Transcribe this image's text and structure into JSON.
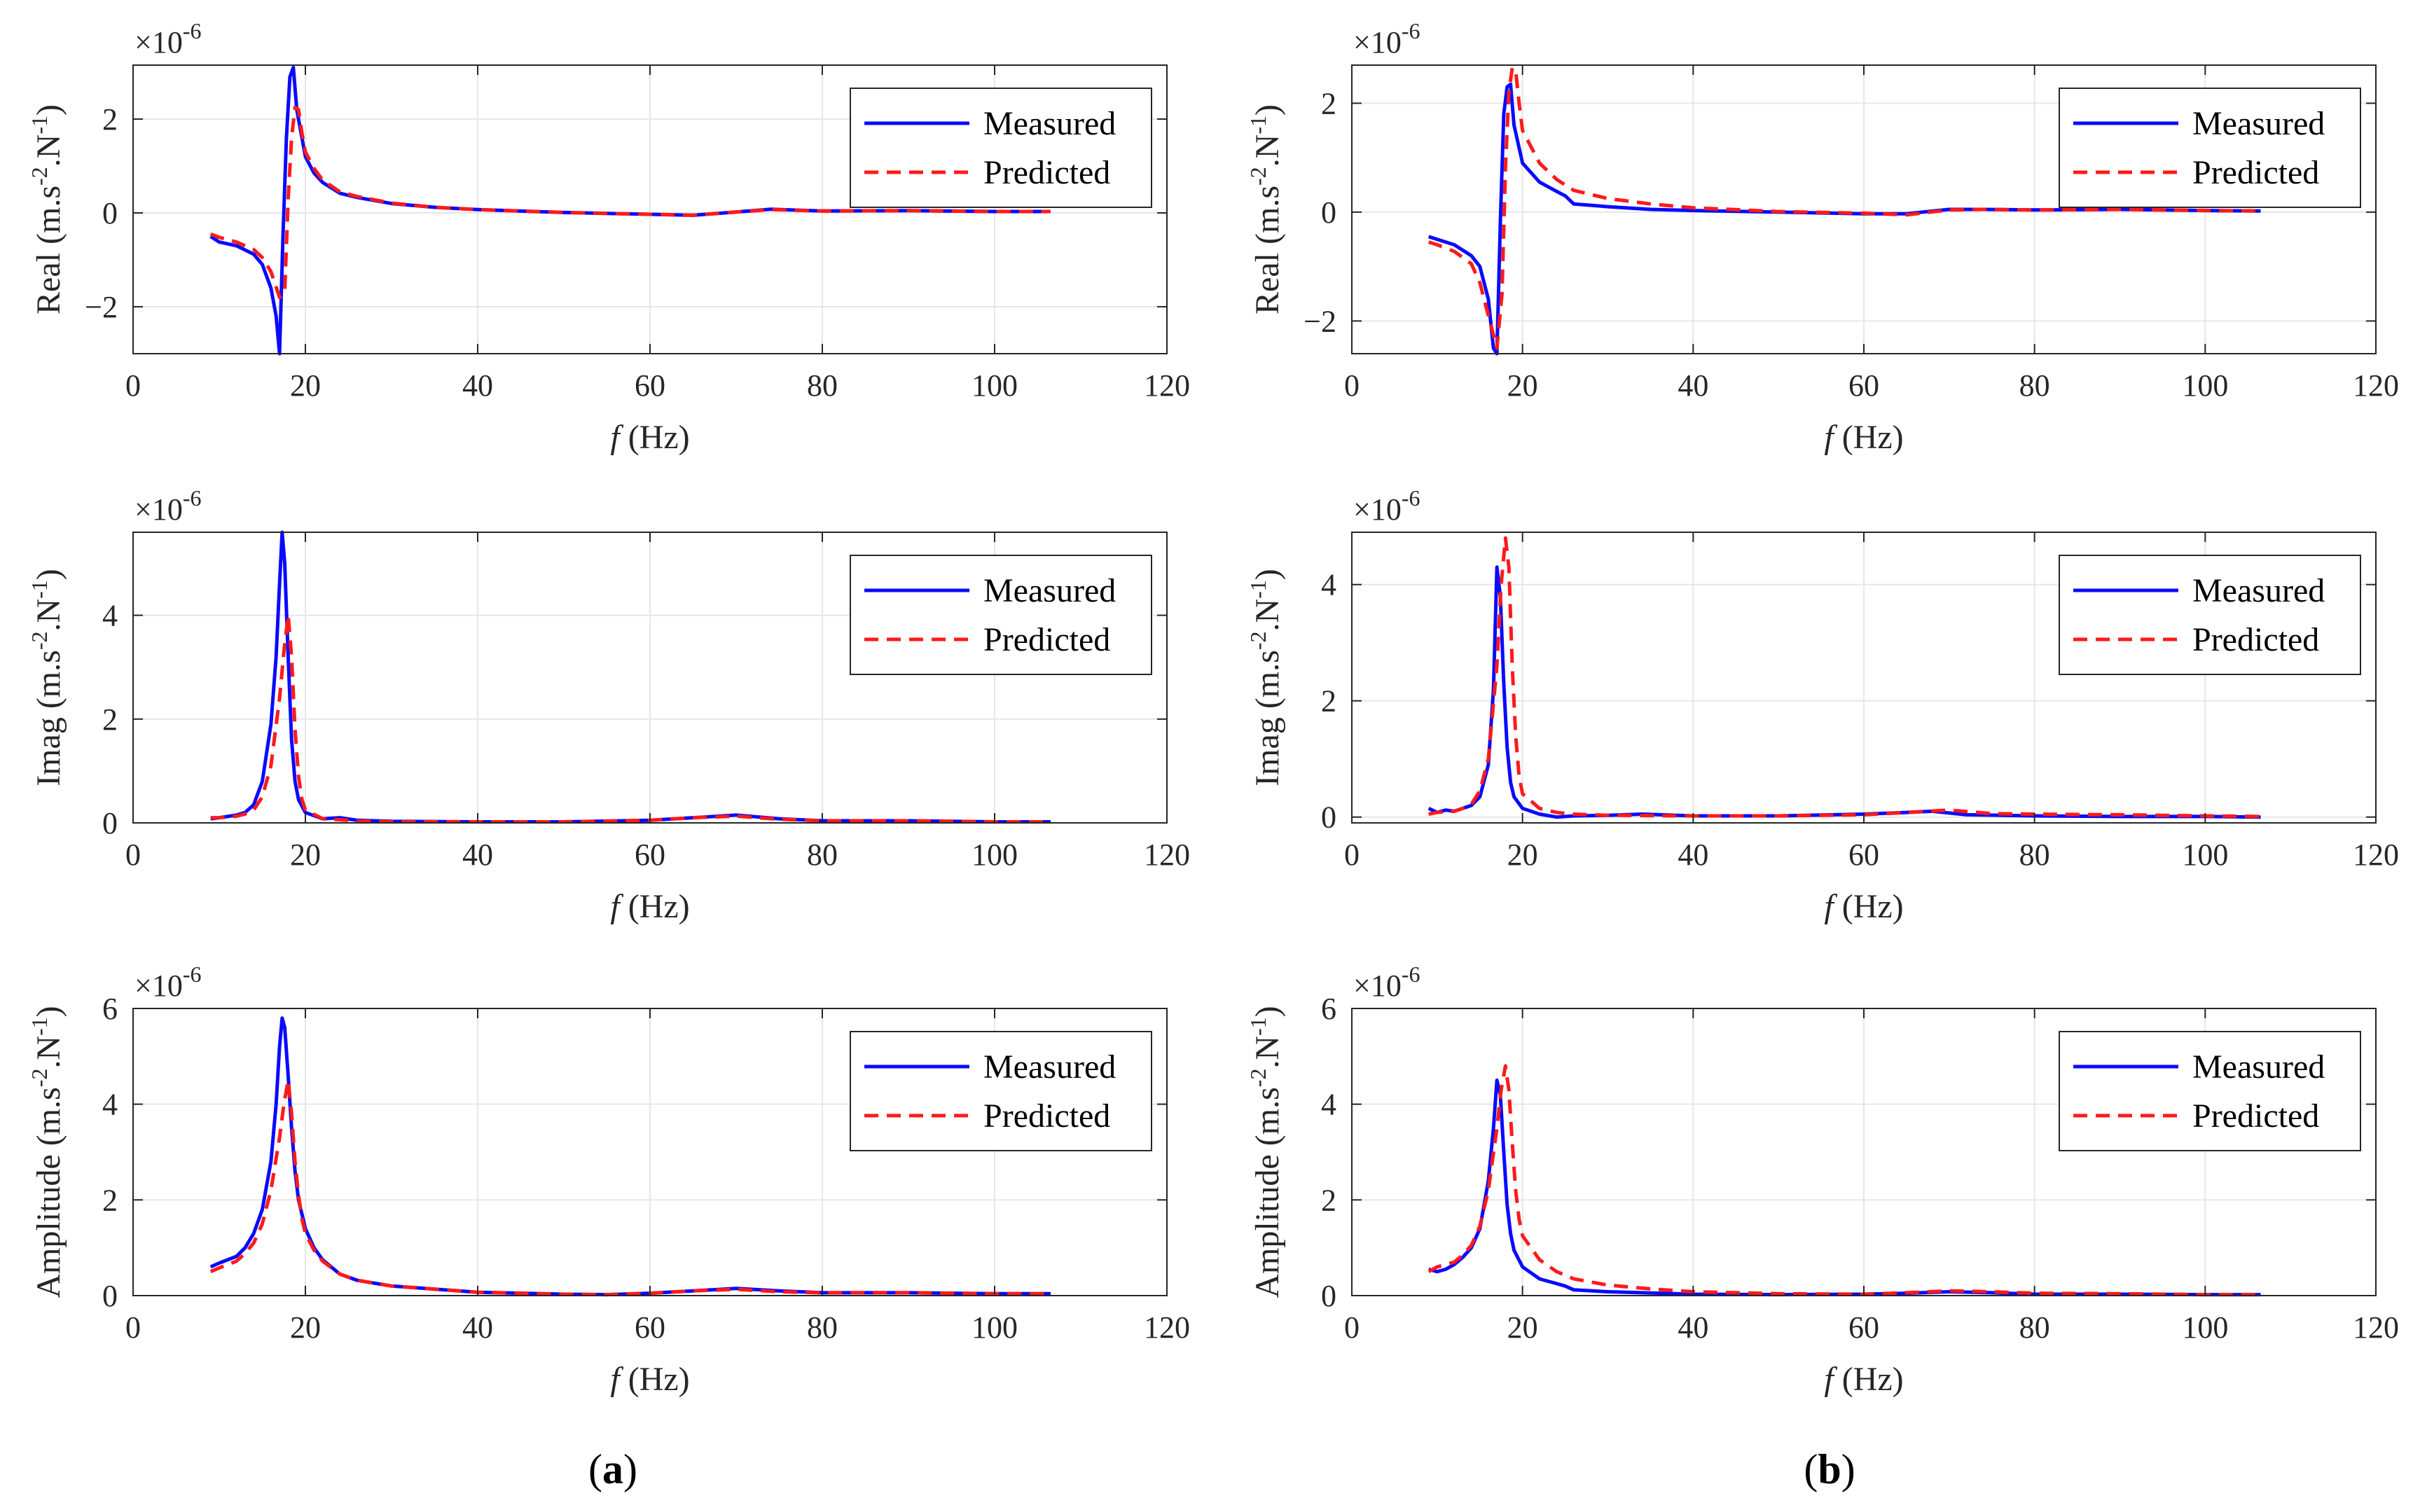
{
  "figure": {
    "captions": [
      {
        "prefix": "(",
        "letter": "a",
        "suffix": ")"
      },
      {
        "prefix": "(",
        "letter": "b",
        "suffix": ")"
      }
    ]
  },
  "colors": {
    "measured": "#0a0aff",
    "predicted": "#ff1a1a",
    "grid": "#e6e6e6",
    "axis": "#262626"
  },
  "chart_data": [
    {
      "type": "line",
      "column": "a",
      "row": 0,
      "exponent_label": "×10",
      "exponent_power": "-6",
      "ylabel": {
        "name": "Real",
        "unit_pre": "(m.s",
        "sup1": "-2",
        "unit_mid": ".N",
        "sup2": "-1",
        "unit_post": ")"
      },
      "xlabel": {
        "var": "f",
        "unit": "(Hz)"
      },
      "xlim": [
        0,
        120
      ],
      "ylim": [
        -3,
        3.15
      ],
      "xticks": [
        0,
        20,
        40,
        60,
        80,
        100,
        120
      ],
      "yticks": [
        -2,
        0,
        2
      ],
      "legend": [
        "Measured",
        "Predicted"
      ],
      "series": [
        {
          "name": "Measured",
          "style": "solid",
          "x": [
            9,
            10,
            12,
            14,
            15,
            16,
            16.6,
            17,
            17.4,
            17.8,
            18.2,
            18.6,
            19,
            20,
            21,
            22,
            24,
            26,
            30,
            35,
            40,
            50,
            60,
            65,
            70,
            74,
            80,
            90,
            100,
            106.5
          ],
          "y": [
            -0.5,
            -0.62,
            -0.7,
            -0.88,
            -1.1,
            -1.6,
            -2.2,
            -3.0,
            -0.5,
            1.6,
            2.9,
            3.1,
            2.2,
            1.2,
            0.85,
            0.65,
            0.42,
            0.33,
            0.2,
            0.12,
            0.07,
            0.01,
            -0.03,
            -0.05,
            0.02,
            0.08,
            0.04,
            0.05,
            0.03,
            0.03
          ]
        },
        {
          "name": "Predicted",
          "style": "dashed",
          "x": [
            9,
            10,
            12,
            14,
            15,
            16,
            17,
            17.6,
            18,
            18.4,
            18.8,
            19.2,
            19.6,
            20,
            21,
            22,
            24,
            26,
            30,
            35,
            40,
            50,
            60,
            65,
            70,
            74,
            80,
            90,
            100,
            106.5
          ],
          "y": [
            -0.45,
            -0.52,
            -0.62,
            -0.78,
            -0.95,
            -1.25,
            -1.8,
            -1.7,
            0.3,
            1.6,
            2.25,
            2.2,
            1.7,
            1.3,
            0.95,
            0.7,
            0.45,
            0.35,
            0.21,
            0.12,
            0.07,
            0.01,
            -0.03,
            -0.05,
            0.02,
            0.07,
            0.04,
            0.05,
            0.03,
            0.03
          ]
        }
      ]
    },
    {
      "type": "line",
      "column": "b",
      "row": 0,
      "exponent_label": "×10",
      "exponent_power": "-6",
      "ylabel": {
        "name": "Real",
        "unit_pre": "(m.s",
        "sup1": "-2",
        "unit_mid": ".N",
        "sup2": "-1",
        "unit_post": ")"
      },
      "xlabel": {
        "var": "f",
        "unit": "(Hz)"
      },
      "xlim": [
        0,
        120
      ],
      "ylim": [
        -2.6,
        2.7
      ],
      "xticks": [
        0,
        20,
        40,
        60,
        80,
        100,
        120
      ],
      "yticks": [
        -2,
        0,
        2
      ],
      "legend": [
        "Measured",
        "Predicted"
      ],
      "series": [
        {
          "name": "Measured",
          "style": "solid",
          "x": [
            9,
            10,
            12,
            14,
            15,
            16,
            16.6,
            17,
            17.4,
            17.8,
            18.2,
            18.6,
            19,
            20,
            22,
            24,
            25,
            26,
            30,
            35,
            40,
            50,
            60,
            65,
            70,
            74,
            80,
            90,
            100,
            106.5
          ],
          "y": [
            -0.45,
            -0.5,
            -0.6,
            -0.8,
            -1.0,
            -1.6,
            -2.5,
            -2.6,
            -0.2,
            1.8,
            2.3,
            2.35,
            1.6,
            0.9,
            0.55,
            0.38,
            0.3,
            0.15,
            0.1,
            0.05,
            0.03,
            0.0,
            -0.03,
            -0.03,
            0.05,
            0.05,
            0.04,
            0.05,
            0.03,
            0.02
          ]
        },
        {
          "name": "Predicted",
          "style": "dashed",
          "x": [
            9,
            10,
            12,
            14,
            15,
            16,
            17,
            17.6,
            18,
            18.4,
            18.8,
            19.2,
            19.6,
            20,
            22,
            24,
            26,
            30,
            35,
            40,
            50,
            60,
            65,
            70,
            74,
            80,
            90,
            100,
            106.5
          ],
          "y": [
            -0.55,
            -0.6,
            -0.72,
            -0.95,
            -1.3,
            -1.9,
            -2.5,
            -1.5,
            0.8,
            2.2,
            2.65,
            2.6,
            2.0,
            1.5,
            0.9,
            0.6,
            0.4,
            0.25,
            0.15,
            0.08,
            0.01,
            -0.02,
            -0.05,
            0.04,
            0.05,
            0.04,
            0.05,
            0.03,
            0.02
          ]
        }
      ]
    },
    {
      "type": "line",
      "column": "a",
      "row": 1,
      "exponent_label": "×10",
      "exponent_power": "-6",
      "ylabel": {
        "name": "Imag",
        "unit_pre": "(m.s",
        "sup1": "-2",
        "unit_mid": ".N",
        "sup2": "-1",
        "unit_post": ")"
      },
      "xlabel": {
        "var": "f",
        "unit": "(Hz)"
      },
      "xlim": [
        0,
        120
      ],
      "ylim": [
        0,
        5.6
      ],
      "xticks": [
        0,
        20,
        40,
        60,
        80,
        100,
        120
      ],
      "yticks": [
        0,
        2,
        4
      ],
      "legend": [
        "Measured",
        "Predicted"
      ],
      "series": [
        {
          "name": "Measured",
          "style": "solid",
          "x": [
            9,
            10,
            12,
            13,
            14,
            15,
            16,
            16.6,
            17,
            17.3,
            17.6,
            18,
            18.4,
            18.8,
            19.2,
            20,
            22,
            24,
            26,
            30,
            40,
            50,
            60,
            65,
            70,
            75,
            80,
            90,
            100,
            106.5
          ],
          "y": [
            0.08,
            0.1,
            0.15,
            0.2,
            0.35,
            0.8,
            1.9,
            3.2,
            4.6,
            5.6,
            5.0,
            3.2,
            1.6,
            0.8,
            0.45,
            0.2,
            0.08,
            0.1,
            0.05,
            0.03,
            0.02,
            0.02,
            0.05,
            0.1,
            0.15,
            0.08,
            0.04,
            0.04,
            0.02,
            0.02
          ]
        },
        {
          "name": "Predicted",
          "style": "dashed",
          "x": [
            9,
            10,
            12,
            13,
            14,
            15,
            16,
            17,
            17.5,
            18,
            18.4,
            18.8,
            19.2,
            19.6,
            20,
            22,
            24,
            26,
            30,
            40,
            50,
            60,
            65,
            70,
            75,
            80,
            90,
            100,
            106.5
          ],
          "y": [
            0.1,
            0.1,
            0.13,
            0.17,
            0.25,
            0.5,
            1.1,
            2.4,
            3.3,
            4.0,
            3.2,
            1.8,
            0.9,
            0.45,
            0.25,
            0.08,
            0.06,
            0.04,
            0.02,
            0.02,
            0.02,
            0.05,
            0.1,
            0.13,
            0.07,
            0.04,
            0.04,
            0.02,
            0.02
          ]
        }
      ]
    },
    {
      "type": "line",
      "column": "b",
      "row": 1,
      "exponent_label": "×10",
      "exponent_power": "-6",
      "ylabel": {
        "name": "Imag",
        "unit_pre": "(m.s",
        "sup1": "-2",
        "unit_mid": ".N",
        "sup2": "-1",
        "unit_post": ")"
      },
      "xlabel": {
        "var": "f",
        "unit": "(Hz)"
      },
      "xlim": [
        0,
        120
      ],
      "ylim": [
        -0.1,
        4.9
      ],
      "xticks": [
        0,
        20,
        40,
        60,
        80,
        100,
        120
      ],
      "yticks": [
        0,
        2,
        4
      ],
      "legend": [
        "Measured",
        "Predicted"
      ],
      "series": [
        {
          "name": "Measured",
          "style": "solid",
          "x": [
            9,
            10,
            11,
            12,
            13,
            14,
            15,
            16,
            16.6,
            17,
            17.4,
            17.8,
            18.2,
            18.6,
            19,
            20,
            22,
            24,
            26,
            30,
            34,
            40,
            50,
            60,
            65,
            68,
            72,
            80,
            90,
            100,
            106.5
          ],
          "y": [
            0.15,
            0.08,
            0.12,
            0.1,
            0.15,
            0.2,
            0.35,
            0.9,
            2.2,
            4.3,
            3.8,
            2.3,
            1.2,
            0.6,
            0.35,
            0.15,
            0.05,
            0.0,
            0.02,
            0.03,
            0.05,
            0.02,
            0.02,
            0.05,
            0.08,
            0.1,
            0.04,
            0.02,
            0.01,
            0.01,
            0.0
          ]
        },
        {
          "name": "Predicted",
          "style": "dashed",
          "x": [
            9,
            10,
            12,
            13,
            14,
            15,
            16,
            17,
            17.5,
            18,
            18.4,
            18.8,
            19.2,
            19.6,
            20,
            22,
            24,
            26,
            30,
            40,
            50,
            60,
            65,
            70,
            75,
            80,
            90,
            100,
            106.5
          ],
          "y": [
            0.05,
            0.08,
            0.1,
            0.15,
            0.22,
            0.45,
            1.0,
            2.6,
            4.0,
            4.8,
            4.3,
            2.6,
            1.4,
            0.7,
            0.4,
            0.15,
            0.08,
            0.05,
            0.03,
            0.02,
            0.02,
            0.04,
            0.08,
            0.12,
            0.06,
            0.05,
            0.04,
            0.02,
            0.01
          ]
        }
      ]
    },
    {
      "type": "line",
      "column": "a",
      "row": 2,
      "exponent_label": "×10",
      "exponent_power": "-6",
      "ylabel": {
        "name": "Amplitude",
        "unit_pre": "(m.s",
        "sup1": "-2",
        "unit_mid": ".N",
        "sup2": "-1",
        "unit_post": ")"
      },
      "xlabel": {
        "var": "f",
        "unit": "(Hz)"
      },
      "xlim": [
        0,
        120
      ],
      "ylim": [
        0,
        6
      ],
      "xticks": [
        0,
        20,
        40,
        60,
        80,
        100,
        120
      ],
      "yticks": [
        0,
        2,
        4,
        6
      ],
      "legend": [
        "Measured",
        "Predicted"
      ],
      "series": [
        {
          "name": "Measured",
          "style": "solid",
          "x": [
            9,
            10,
            12,
            13,
            14,
            15,
            16,
            16.6,
            17,
            17.3,
            17.6,
            18,
            18.4,
            18.8,
            19.2,
            20,
            21,
            22,
            24,
            26,
            30,
            40,
            50,
            55,
            60,
            65,
            70,
            75,
            80,
            90,
            100,
            106.5
          ],
          "y": [
            0.6,
            0.68,
            0.82,
            1.0,
            1.3,
            1.8,
            2.8,
            4.0,
            5.2,
            5.8,
            5.6,
            4.6,
            3.5,
            2.6,
            2.0,
            1.4,
            1.0,
            0.75,
            0.45,
            0.32,
            0.2,
            0.07,
            0.03,
            0.02,
            0.05,
            0.1,
            0.15,
            0.1,
            0.06,
            0.06,
            0.04,
            0.04
          ]
        },
        {
          "name": "Predicted",
          "style": "dashed",
          "x": [
            9,
            10,
            12,
            13,
            14,
            15,
            16,
            17,
            17.5,
            18,
            18.4,
            18.8,
            19.2,
            19.6,
            20,
            21,
            22,
            24,
            26,
            30,
            40,
            50,
            55,
            60,
            65,
            70,
            75,
            80,
            90,
            100,
            106.5
          ],
          "y": [
            0.5,
            0.58,
            0.72,
            0.88,
            1.1,
            1.5,
            2.2,
            3.3,
            4.0,
            4.5,
            3.8,
            2.8,
            2.1,
            1.6,
            1.3,
            0.95,
            0.72,
            0.45,
            0.32,
            0.2,
            0.07,
            0.03,
            0.02,
            0.05,
            0.1,
            0.13,
            0.08,
            0.06,
            0.06,
            0.04,
            0.04
          ]
        }
      ]
    },
    {
      "type": "line",
      "column": "b",
      "row": 2,
      "exponent_label": "×10",
      "exponent_power": "-6",
      "ylabel": {
        "name": "Amplitude",
        "unit_pre": "(m.s",
        "sup1": "-2",
        "unit_mid": ".N",
        "sup2": "-1",
        "unit_post": ")"
      },
      "xlabel": {
        "var": "f",
        "unit": "(Hz)"
      },
      "xlim": [
        0,
        120
      ],
      "ylim": [
        0,
        6
      ],
      "xticks": [
        0,
        20,
        40,
        60,
        80,
        100,
        120
      ],
      "yticks": [
        0,
        2,
        4,
        6
      ],
      "legend": [
        "Measured",
        "Predicted"
      ],
      "series": [
        {
          "name": "Measured",
          "style": "solid",
          "x": [
            9,
            10,
            11,
            12,
            13,
            14,
            15,
            16,
            16.6,
            17,
            17.4,
            17.8,
            18.2,
            18.6,
            19,
            20,
            22,
            24,
            25,
            26,
            30,
            40,
            50,
            60,
            65,
            70,
            75,
            80,
            90,
            100,
            106.5
          ],
          "y": [
            0.55,
            0.5,
            0.55,
            0.65,
            0.8,
            1.0,
            1.4,
            2.4,
            3.5,
            4.5,
            4.2,
            3.0,
            1.9,
            1.3,
            0.95,
            0.6,
            0.35,
            0.25,
            0.2,
            0.12,
            0.08,
            0.03,
            0.02,
            0.03,
            0.05,
            0.08,
            0.06,
            0.03,
            0.03,
            0.02,
            0.02
          ]
        },
        {
          "name": "Predicted",
          "style": "dashed",
          "x": [
            9,
            10,
            12,
            13,
            14,
            15,
            16,
            17,
            17.5,
            18,
            18.4,
            18.8,
            19.2,
            19.6,
            20,
            22,
            24,
            26,
            30,
            35,
            40,
            50,
            60,
            65,
            70,
            75,
            80,
            90,
            100,
            106.5
          ],
          "y": [
            0.5,
            0.6,
            0.7,
            0.85,
            1.05,
            1.45,
            2.2,
            3.5,
            4.3,
            4.8,
            4.3,
            3.2,
            2.2,
            1.6,
            1.25,
            0.75,
            0.5,
            0.35,
            0.22,
            0.14,
            0.08,
            0.04,
            0.03,
            0.06,
            0.1,
            0.08,
            0.05,
            0.04,
            0.02,
            0.02
          ]
        }
      ]
    }
  ]
}
